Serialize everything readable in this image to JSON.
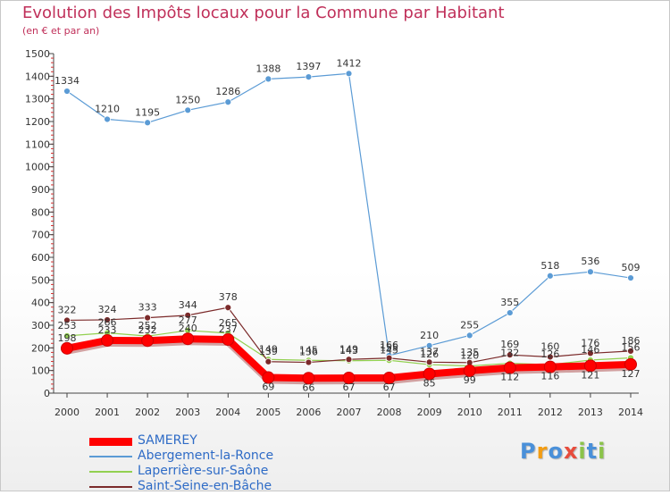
{
  "chart_data": {
    "type": "line",
    "title": "Evolution des Impôts locaux pour la Commune par Habitant",
    "subtitle": "(en € et par an)",
    "xlabel": "",
    "ylabel": "",
    "x": [
      "2000",
      "2001",
      "2002",
      "2003",
      "2004",
      "2005",
      "2006",
      "2007",
      "2008",
      "2009",
      "2010",
      "2011",
      "2012",
      "2013",
      "2014"
    ],
    "ylim": [
      0,
      1500
    ],
    "yticks": [
      0,
      100,
      200,
      300,
      400,
      500,
      600,
      700,
      800,
      900,
      1000,
      1100,
      1200,
      1300,
      1400,
      1500
    ],
    "grid": false,
    "legend_position": "bottom-left",
    "series": [
      {
        "name": "SAMEREY",
        "color": "#ff0000",
        "values": [
          198,
          233,
          232,
          240,
          237,
          69,
          66,
          67,
          67,
          85,
          99,
          112,
          116,
          121,
          127
        ]
      },
      {
        "name": "Abergement-la-Ronce",
        "color": "#5b9bd5",
        "values": [
          1334,
          1210,
          1195,
          1250,
          1286,
          1388,
          1397,
          1412,
          166,
          210,
          255,
          355,
          518,
          536,
          509
        ]
      },
      {
        "name": "Laperrière-sur-Saône",
        "color": "#92d050",
        "values": [
          253,
          266,
          252,
          277,
          265,
          149,
          145,
          143,
          145,
          126,
          120,
          132,
          126,
          146,
          156
        ]
      },
      {
        "name": "Saint-Seine-en-Bâche",
        "color": "#7b2a2a",
        "values": [
          322,
          324,
          333,
          344,
          378,
          139,
          136,
          149,
          155,
          137,
          135,
          169,
          160,
          176,
          186
        ]
      }
    ]
  },
  "logo": {
    "text": "Proxiti",
    "letters": [
      {
        "ch": "P",
        "color": "#4a90d9"
      },
      {
        "ch": "r",
        "color": "#f39c12"
      },
      {
        "ch": "o",
        "color": "#4a90d9"
      },
      {
        "ch": "x",
        "color": "#e74c3c"
      },
      {
        "ch": "i",
        "color": "#8bc34a"
      },
      {
        "ch": "t",
        "color": "#4a90d9"
      },
      {
        "ch": "i",
        "color": "#8bc34a"
      }
    ]
  }
}
